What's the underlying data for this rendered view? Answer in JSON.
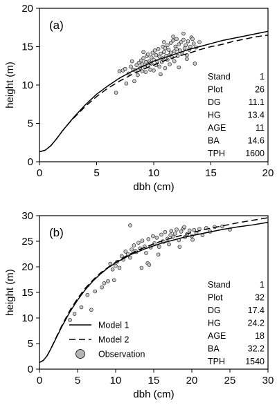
{
  "chart_data": [
    {
      "type": "scatter",
      "panel_label": "(a)",
      "xlabel": "dbh (cm)",
      "ylabel": "height (m)",
      "xlim": [
        0,
        20
      ],
      "ylim": [
        0,
        20
      ],
      "xticks": [
        0,
        5,
        10,
        15,
        20
      ],
      "yticks": [
        0,
        5,
        10,
        15,
        20
      ],
      "grid": false,
      "stats": [
        {
          "label": "Stand",
          "value": "1"
        },
        {
          "label": "Plot",
          "value": "26"
        },
        {
          "label": "DG",
          "value": "11.1"
        },
        {
          "label": "HG",
          "value": "13.4"
        },
        {
          "label": "AGE",
          "value": "11"
        },
        {
          "label": "BA",
          "value": "14.6"
        },
        {
          "label": "TPH",
          "value": "1600"
        }
      ],
      "model1": {
        "x": [
          0,
          0.5,
          1,
          1.5,
          2,
          2.5,
          3,
          4,
          5,
          6,
          7,
          8,
          9,
          10,
          11,
          12,
          13,
          14,
          15,
          16,
          17,
          18,
          19,
          20
        ],
        "y": [
          1.3,
          1.5,
          2.1,
          3.0,
          4.0,
          4.9,
          5.8,
          7.4,
          8.8,
          9.9,
          10.9,
          11.7,
          12.4,
          13.1,
          13.6,
          14.1,
          14.6,
          15.0,
          15.4,
          15.8,
          16.1,
          16.4,
          16.7,
          17.0
        ]
      },
      "model2": {
        "x": [
          0,
          0.5,
          1,
          1.5,
          2,
          2.5,
          3,
          4,
          5,
          6,
          7,
          8,
          9,
          10,
          11,
          12,
          13,
          14,
          15,
          16,
          17,
          18,
          19,
          20
        ],
        "y": [
          1.3,
          1.5,
          2.1,
          3.0,
          4.0,
          4.9,
          5.7,
          7.2,
          8.5,
          9.6,
          10.5,
          11.3,
          12.0,
          12.6,
          13.2,
          13.7,
          14.1,
          14.6,
          15.0,
          15.3,
          15.7,
          16.0,
          16.3,
          16.5
        ]
      },
      "observations": {
        "x": [
          6.7,
          7.0,
          7.3,
          7.5,
          7.8,
          8.0,
          8.2,
          8.3,
          8.5,
          8.6,
          8.7,
          8.8,
          8.9,
          9.0,
          9.0,
          9.1,
          9.2,
          9.3,
          9.3,
          9.4,
          9.5,
          9.5,
          9.6,
          9.7,
          9.8,
          9.8,
          9.9,
          10.0,
          10.0,
          10.1,
          10.2,
          10.2,
          10.3,
          10.4,
          10.5,
          10.5,
          10.6,
          10.7,
          10.8,
          10.8,
          10.9,
          11.0,
          11.0,
          11.1,
          11.2,
          11.2,
          11.3,
          11.4,
          11.5,
          11.5,
          11.6,
          11.7,
          11.8,
          11.8,
          11.9,
          12.0,
          12.0,
          12.1,
          12.2,
          12.3,
          12.4,
          12.5,
          12.6,
          12.7,
          12.8,
          12.9,
          13.0,
          13.1,
          13.2,
          13.3,
          13.5,
          13.7,
          14.0,
          8.4,
          9.7,
          10.6,
          11.4,
          12.2,
          12.9,
          13.6,
          8.1,
          9.1,
          10.9,
          11.7,
          12.6,
          13.4,
          7.6
        ],
        "y": [
          9.0,
          11.8,
          11.9,
          12.1,
          11.5,
          12.4,
          12.0,
          10.5,
          12.6,
          11.3,
          12.9,
          12.2,
          13.2,
          11.8,
          12.7,
          13.5,
          12.3,
          13.0,
          11.7,
          13.8,
          12.5,
          14.0,
          13.1,
          12.0,
          13.6,
          12.8,
          14.2,
          11.9,
          13.3,
          14.5,
          12.6,
          13.9,
          13.1,
          14.7,
          12.4,
          13.7,
          14.1,
          13.0,
          15.0,
          13.5,
          14.3,
          12.2,
          14.8,
          13.8,
          15.2,
          13.3,
          14.6,
          13.9,
          15.5,
          14.2,
          13.6,
          15.8,
          14.4,
          13.1,
          15.0,
          14.7,
          16.0,
          13.8,
          15.3,
          14.5,
          15.6,
          14.1,
          15.9,
          14.8,
          15.2,
          13.9,
          15.7,
          14.6,
          15.0,
          16.2,
          15.4,
          14.9,
          15.6,
          11.9,
          12.9,
          11.4,
          12.7,
          12.3,
          13.4,
          12.8,
          13.1,
          14.3,
          15.6,
          16.3,
          16.7,
          16.0,
          10.2
        ]
      }
    },
    {
      "type": "scatter",
      "panel_label": "(b)",
      "xlabel": "dbh (cm)",
      "ylabel": "height (m)",
      "xlim": [
        0,
        30
      ],
      "ylim": [
        0,
        30
      ],
      "xticks": [
        0,
        5,
        10,
        15,
        20,
        25,
        30
      ],
      "yticks": [
        0,
        5,
        10,
        15,
        20,
        25,
        30
      ],
      "grid": false,
      "stats": [
        {
          "label": "Stand",
          "value": "1"
        },
        {
          "label": "Plot",
          "value": "32"
        },
        {
          "label": "DG",
          "value": "17.4"
        },
        {
          "label": "HG",
          "value": "24.2"
        },
        {
          "label": "AGE",
          "value": "18"
        },
        {
          "label": "BA",
          "value": "32.2"
        },
        {
          "label": "TPH",
          "value": "1540"
        }
      ],
      "legend": {
        "placement": "bottom-left",
        "entries": [
          {
            "label": "Model 1",
            "style": "solid"
          },
          {
            "label": "Model 2",
            "style": "dashed"
          },
          {
            "label": "Observation",
            "style": "marker"
          }
        ]
      },
      "model1": {
        "x": [
          0,
          0.5,
          1,
          1.5,
          2,
          2.5,
          3,
          4,
          5,
          6,
          7,
          8,
          9,
          10,
          11,
          12,
          13,
          14,
          15,
          16,
          17,
          18,
          19,
          20,
          22,
          24,
          26,
          28,
          30
        ],
        "y": [
          1.3,
          1.7,
          2.6,
          4.0,
          5.5,
          7.0,
          8.5,
          11.2,
          13.5,
          15.5,
          17.2,
          18.6,
          19.8,
          20.8,
          21.6,
          22.4,
          23.0,
          23.6,
          24.1,
          24.6,
          25.0,
          25.4,
          25.8,
          26.1,
          26.7,
          27.3,
          27.8,
          28.2,
          28.7
        ]
      },
      "model2": {
        "x": [
          0,
          0.5,
          1,
          1.5,
          2,
          2.5,
          3,
          4,
          5,
          6,
          7,
          8,
          9,
          10,
          11,
          12,
          13,
          14,
          15,
          16,
          17,
          18,
          19,
          20,
          22,
          24,
          26,
          28,
          30
        ],
        "y": [
          1.3,
          1.7,
          2.6,
          4.0,
          5.6,
          7.2,
          8.7,
          11.5,
          13.8,
          15.8,
          17.4,
          18.8,
          19.9,
          20.9,
          21.8,
          22.6,
          23.3,
          23.9,
          24.5,
          25.0,
          25.5,
          25.9,
          26.3,
          26.7,
          27.4,
          28.0,
          28.6,
          29.1,
          29.6
        ]
      },
      "observations": {
        "x": [
          4.0,
          4.6,
          5.5,
          6.3,
          6.8,
          7.3,
          8.5,
          9.0,
          9.3,
          9.6,
          10.0,
          10.2,
          10.5,
          10.8,
          11.0,
          11.3,
          11.6,
          11.9,
          12.1,
          12.4,
          12.7,
          13.0,
          13.2,
          13.5,
          13.8,
          14.0,
          14.3,
          14.6,
          14.9,
          15.1,
          15.4,
          15.7,
          16.0,
          16.2,
          16.5,
          16.8,
          17.0,
          17.3,
          17.5,
          17.8,
          18.0,
          18.3,
          18.6,
          18.9,
          19.1,
          19.4,
          19.7,
          20.0,
          20.3,
          20.6,
          21.0,
          21.4,
          21.9,
          22.4,
          23.0,
          24.0,
          25.0,
          11.9,
          14.2,
          14.4,
          16.3,
          17.2,
          18.4,
          19.0,
          20.1,
          13.4,
          15.6,
          12.6,
          9.8,
          8.2
        ],
        "y": [
          9.6,
          10.8,
          12.1,
          14.5,
          11.6,
          15.2,
          16.8,
          17.2,
          20.6,
          19.5,
          20.2,
          21.0,
          19.8,
          22.1,
          21.4,
          23.0,
          22.5,
          21.8,
          23.4,
          24.2,
          22.9,
          24.7,
          23.6,
          25.1,
          24.0,
          22.7,
          25.4,
          23.8,
          26.0,
          24.6,
          25.7,
          23.9,
          26.3,
          25.0,
          26.8,
          25.5,
          24.4,
          27.0,
          25.9,
          26.5,
          27.3,
          25.2,
          26.9,
          27.5,
          25.8,
          26.4,
          27.1,
          26.0,
          27.2,
          26.6,
          27.4,
          26.2,
          27.6,
          26.9,
          27.8,
          27.9,
          27.3,
          28.1,
          20.7,
          20.4,
          24.9,
          26.2,
          23.9,
          27.8,
          25.3,
          19.8,
          22.4,
          23.1,
          17.4,
          16.0
        ]
      }
    }
  ]
}
